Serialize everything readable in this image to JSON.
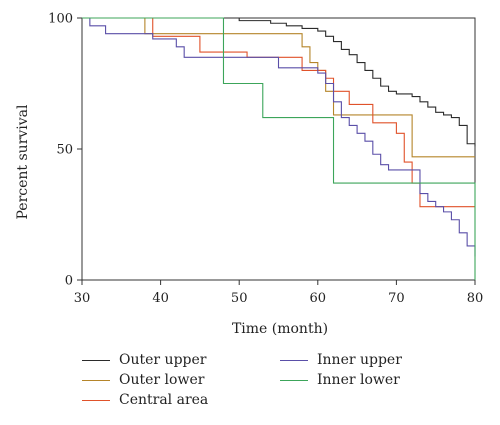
{
  "chart_data": {
    "type": "line",
    "step": true,
    "title": "",
    "xlabel": "Time (month)",
    "ylabel": "Percent survival",
    "xlim": [
      30,
      80
    ],
    "ylim": [
      0,
      100
    ],
    "x_ticks": [
      30,
      40,
      50,
      60,
      70,
      80
    ],
    "y_ticks": [
      0,
      50,
      100
    ],
    "grid": false,
    "legend_position": "bottom",
    "series": [
      {
        "name": "Outer upper",
        "color": "#2b2b2b",
        "points": [
          [
            30,
            100
          ],
          [
            49,
            100
          ],
          [
            50,
            99
          ],
          [
            54,
            98
          ],
          [
            56,
            97
          ],
          [
            58,
            96
          ],
          [
            60,
            95
          ],
          [
            61,
            93
          ],
          [
            62,
            91
          ],
          [
            63,
            88
          ],
          [
            64,
            86
          ],
          [
            65,
            83
          ],
          [
            66,
            80
          ],
          [
            67,
            77
          ],
          [
            68,
            74
          ],
          [
            69,
            72
          ],
          [
            70,
            71
          ],
          [
            72,
            70
          ],
          [
            73,
            68
          ],
          [
            74,
            66
          ],
          [
            75,
            64
          ],
          [
            76,
            63
          ],
          [
            77,
            62
          ],
          [
            78,
            59
          ],
          [
            79,
            52
          ],
          [
            80,
            51
          ]
        ]
      },
      {
        "name": "Outer lower",
        "color": "#b5852a",
        "points": [
          [
            30,
            100
          ],
          [
            37,
            100
          ],
          [
            38,
            94
          ],
          [
            57,
            94
          ],
          [
            58,
            89
          ],
          [
            59,
            83
          ],
          [
            60,
            80
          ],
          [
            61,
            72
          ],
          [
            62,
            63
          ],
          [
            69,
            63
          ],
          [
            72,
            47
          ],
          [
            80,
            47
          ]
        ]
      },
      {
        "name": "Central area",
        "color": "#e0522a",
        "points": [
          [
            30,
            100
          ],
          [
            38,
            100
          ],
          [
            39,
            93
          ],
          [
            44,
            93
          ],
          [
            45,
            87
          ],
          [
            50,
            87
          ],
          [
            51,
            85
          ],
          [
            57,
            85
          ],
          [
            58,
            80
          ],
          [
            60,
            80
          ],
          [
            61,
            77
          ],
          [
            62,
            72
          ],
          [
            64,
            67
          ],
          [
            67,
            60
          ],
          [
            70,
            56
          ],
          [
            71,
            45
          ],
          [
            72,
            37
          ],
          [
            73,
            28
          ],
          [
            80,
            28
          ]
        ]
      },
      {
        "name": "Inner upper",
        "color": "#5a4fa8",
        "points": [
          [
            30,
            100
          ],
          [
            31,
            97
          ],
          [
            33,
            94
          ],
          [
            38,
            94
          ],
          [
            39,
            92
          ],
          [
            42,
            89
          ],
          [
            43,
            85
          ],
          [
            54,
            85
          ],
          [
            55,
            81
          ],
          [
            59,
            81
          ],
          [
            60,
            79
          ],
          [
            61,
            75
          ],
          [
            62,
            68
          ],
          [
            63,
            62
          ],
          [
            64,
            59
          ],
          [
            65,
            56
          ],
          [
            66,
            53
          ],
          [
            67,
            48
          ],
          [
            68,
            44
          ],
          [
            69,
            42
          ],
          [
            72,
            42
          ],
          [
            73,
            33
          ],
          [
            74,
            30
          ],
          [
            75,
            28
          ],
          [
            76,
            26
          ],
          [
            77,
            23
          ],
          [
            78,
            18
          ],
          [
            79,
            13
          ],
          [
            80,
            9
          ]
        ]
      },
      {
        "name": "Inner lower",
        "color": "#3ca55a",
        "points": [
          [
            30,
            100
          ],
          [
            47,
            100
          ],
          [
            48,
            75
          ],
          [
            52,
            75
          ],
          [
            53,
            62
          ],
          [
            61,
            62
          ],
          [
            62,
            37
          ],
          [
            80,
            37
          ],
          [
            80,
            0
          ]
        ]
      }
    ]
  }
}
